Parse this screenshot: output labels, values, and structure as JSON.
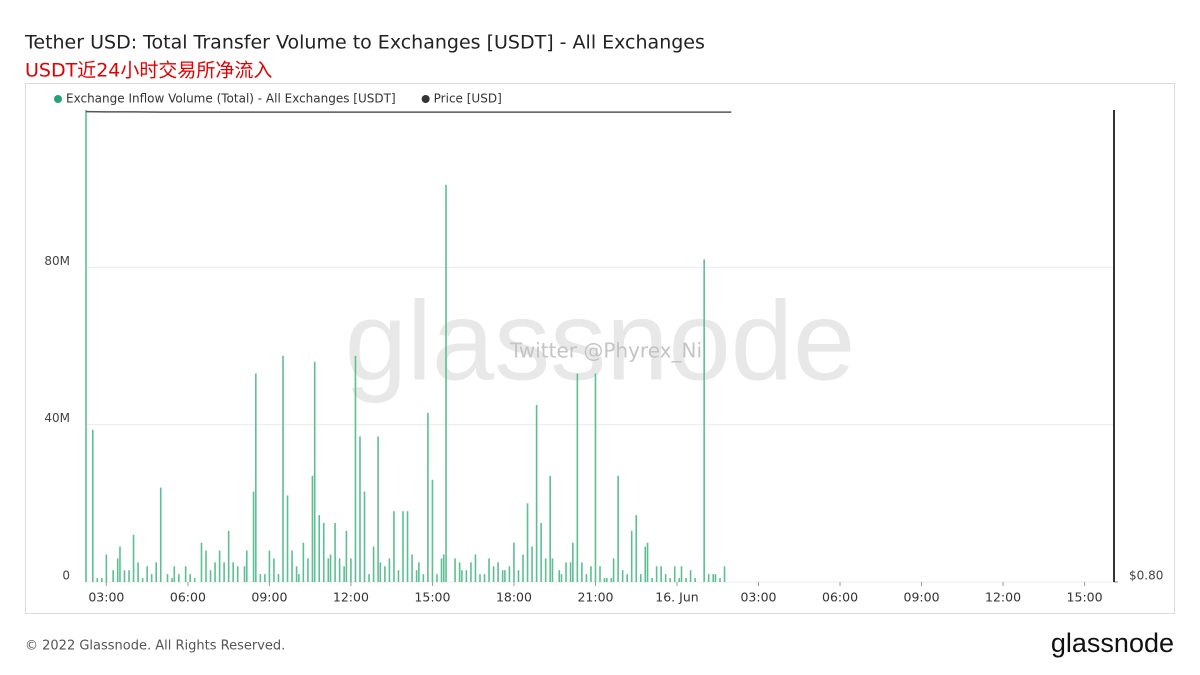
{
  "chart_data": {
    "type": "bar",
    "title": "Tether USD: Total Transfer Volume to Exchanges [USDT] - All Exchanges",
    "subtitle": "USDT近24小时交易所净流入",
    "watermark": "glassnode",
    "annotation": "Twitter @Phyrex_Ni",
    "xlim": [
      "15. Jun 02:15",
      "16. Jun 16:05"
    ],
    "xticks": [
      {
        "value": "15. Jun 03:00",
        "label": "03:00"
      },
      {
        "value": "15. Jun 06:00",
        "label": "06:00"
      },
      {
        "value": "15. Jun 09:00",
        "label": "09:00"
      },
      {
        "value": "15. Jun 12:00",
        "label": "12:00"
      },
      {
        "value": "15. Jun 15:00",
        "label": "15:00"
      },
      {
        "value": "15. Jun 18:00",
        "label": "18:00"
      },
      {
        "value": "15. Jun 21:00",
        "label": "21:00"
      },
      {
        "value": "16. Jun 00:00",
        "label": "16. Jun"
      },
      {
        "value": "16. Jun 03:00",
        "label": "03:00"
      },
      {
        "value": "16. Jun 06:00",
        "label": "06:00"
      },
      {
        "value": "16. Jun 09:00",
        "label": "09:00"
      },
      {
        "value": "16. Jun 12:00",
        "label": "12:00"
      },
      {
        "value": "16. Jun 15:00",
        "label": "15:00"
      }
    ],
    "ylim": [
      0,
      120000000
    ],
    "yticks": [
      0,
      {
        "value": 40000000,
        "label": "40M"
      },
      {
        "value": 80000000,
        "label": "80M"
      }
    ],
    "y2lim": [
      0.8,
      1.0
    ],
    "y2ticks": [
      {
        "value": 0.8,
        "label": "$0.80"
      }
    ],
    "grid": true,
    "series": [
      {
        "name": "Exchange Inflow Volume (Total) - All Exchanges [USDT]",
        "type": "bar",
        "color": "#5cbf93",
        "legend_color": "#26a17b",
        "x": [
          "15. Jun 02:15",
          "15. Jun 02:30",
          "15. Jun 02:40",
          "15. Jun 02:50",
          "15. Jun 03:00",
          "15. Jun 03:15",
          "15. Jun 03:25",
          "15. Jun 03:30",
          "15. Jun 03:40",
          "15. Jun 03:50",
          "15. Jun 04:00",
          "15. Jun 04:10",
          "15. Jun 04:20",
          "15. Jun 04:30",
          "15. Jun 04:40",
          "15. Jun 04:50",
          "15. Jun 05:00",
          "15. Jun 05:15",
          "15. Jun 05:25",
          "15. Jun 05:30",
          "15. Jun 05:40",
          "15. Jun 05:55",
          "15. Jun 06:05",
          "15. Jun 06:15",
          "15. Jun 06:30",
          "15. Jun 06:40",
          "15. Jun 06:50",
          "15. Jun 07:00",
          "15. Jun 07:10",
          "15. Jun 07:20",
          "15. Jun 07:30",
          "15. Jun 07:40",
          "15. Jun 07:50",
          "15. Jun 08:05",
          "15. Jun 08:10",
          "15. Jun 08:25",
          "15. Jun 08:30",
          "15. Jun 08:40",
          "15. Jun 08:50",
          "15. Jun 09:00",
          "15. Jun 09:10",
          "15. Jun 09:20",
          "15. Jun 09:30",
          "15. Jun 09:40",
          "15. Jun 09:50",
          "15. Jun 10:00",
          "15. Jun 10:05",
          "15. Jun 10:15",
          "15. Jun 10:25",
          "15. Jun 10:35",
          "15. Jun 10:40",
          "15. Jun 10:50",
          "15. Jun 11:00",
          "15. Jun 11:10",
          "15. Jun 11:15",
          "15. Jun 11:25",
          "15. Jun 11:35",
          "15. Jun 11:45",
          "15. Jun 11:50",
          "15. Jun 12:00",
          "15. Jun 12:10",
          "15. Jun 12:20",
          "15. Jun 12:30",
          "15. Jun 12:40",
          "15. Jun 12:50",
          "15. Jun 13:00",
          "15. Jun 13:05",
          "15. Jun 13:15",
          "15. Jun 13:25",
          "15. Jun 13:35",
          "15. Jun 13:45",
          "15. Jun 13:55",
          "15. Jun 14:05",
          "15. Jun 14:15",
          "15. Jun 14:25",
          "15. Jun 14:30",
          "15. Jun 14:40",
          "15. Jun 14:50",
          "15. Jun 15:00",
          "15. Jun 15:10",
          "15. Jun 15:20",
          "15. Jun 15:25",
          "15. Jun 15:30",
          "15. Jun 15:50",
          "15. Jun 16:00",
          "15. Jun 16:05",
          "15. Jun 16:15",
          "15. Jun 16:25",
          "15. Jun 16:35",
          "15. Jun 16:45",
          "15. Jun 16:55",
          "15. Jun 17:05",
          "15. Jun 17:15",
          "15. Jun 17:25",
          "15. Jun 17:35",
          "15. Jun 17:40",
          "15. Jun 17:50",
          "15. Jun 18:00",
          "15. Jun 18:10",
          "15. Jun 18:20",
          "15. Jun 18:30",
          "15. Jun 18:40",
          "15. Jun 18:50",
          "15. Jun 19:00",
          "15. Jun 19:10",
          "15. Jun 19:20",
          "15. Jun 19:25",
          "15. Jun 19:40",
          "15. Jun 19:45",
          "15. Jun 19:55",
          "15. Jun 20:05",
          "15. Jun 20:10",
          "15. Jun 20:20",
          "15. Jun 20:30",
          "15. Jun 20:40",
          "15. Jun 20:50",
          "15. Jun 21:00",
          "15. Jun 21:10",
          "15. Jun 21:20",
          "15. Jun 21:25",
          "15. Jun 21:35",
          "15. Jun 21:40",
          "15. Jun 21:50",
          "15. Jun 22:00",
          "15. Jun 22:10",
          "15. Jun 22:20",
          "15. Jun 22:30",
          "15. Jun 22:40",
          "15. Jun 22:50",
          "15. Jun 22:55",
          "15. Jun 23:05",
          "15. Jun 23:15",
          "15. Jun 23:25",
          "15. Jun 23:35",
          "15. Jun 23:45",
          "15. Jun 23:55",
          "16. Jun 00:05",
          "16. Jun 00:10",
          "16. Jun 00:20",
          "16. Jun 00:30",
          "16. Jun 00:40",
          "16. Jun 01:00",
          "16. Jun 01:10",
          "16. Jun 01:20",
          "16. Jun 01:25",
          "16. Jun 01:35",
          "16. Jun 01:45"
        ],
        "values": [
          120000000,
          38700000,
          1000000,
          1000000,
          7000000,
          3000000,
          6000000,
          9000000,
          3000000,
          3000000,
          12000000,
          5000000,
          1000000,
          4000000,
          2000000,
          5000000,
          24000000,
          2000000,
          1000000,
          4000000,
          2000000,
          4000000,
          2000000,
          1000000,
          10000000,
          8000000,
          3000000,
          5000000,
          8000000,
          5000000,
          13000000,
          5000000,
          4000000,
          4000000,
          8000000,
          23000000,
          53000000,
          2000000,
          2000000,
          8000000,
          6000000,
          2000000,
          57500000,
          22000000,
          8000000,
          4000000,
          2000000,
          10000000,
          6000000,
          27000000,
          56000000,
          17000000,
          15000000,
          6000000,
          7000000,
          15000000,
          6000000,
          4000000,
          13000000,
          6000000,
          57500000,
          37000000,
          23000000,
          2000000,
          9000000,
          37000000,
          5000000,
          4000000,
          6000000,
          18000000,
          3000000,
          18000000,
          18000000,
          7000000,
          3000000,
          5000000,
          2000000,
          43000000,
          26000000,
          2000000,
          6000000,
          7000000,
          101000000,
          6000000,
          5000000,
          3000000,
          3000000,
          5000000,
          7000000,
          2000000,
          2000000,
          6000000,
          4000000,
          5000000,
          3000000,
          3000000,
          4000000,
          10000000,
          3000000,
          7000000,
          20000000,
          9000000,
          45000000,
          15000000,
          6000000,
          27000000,
          6000000,
          3000000,
          2000000,
          5000000,
          5000000,
          10000000,
          53000000,
          5000000,
          2000000,
          4000000,
          53000000,
          4000000,
          1000000,
          1000000,
          1000000,
          6000000,
          27000000,
          3000000,
          2000000,
          13000000,
          17000000,
          2000000,
          9000000,
          10000000,
          1000000,
          4000000,
          4000000,
          2000000,
          1000000,
          4000000,
          1000000,
          4000000,
          1000000,
          3000000,
          1000000,
          82000000,
          2000000,
          2000000,
          2000000,
          1000000,
          4000000
        ]
      },
      {
        "name": "Price [USD]",
        "type": "line",
        "axis": "y2",
        "color": "#555555",
        "legend_color": "#333333",
        "x": [
          "15. Jun 02:15",
          "15. Jun 03:00",
          "15. Jun 04:00",
          "15. Jun 05:00",
          "15. Jun 06:00",
          "15. Jun 07:00",
          "15. Jun 08:00",
          "15. Jun 09:00",
          "15. Jun 10:00",
          "15. Jun 11:00",
          "15. Jun 12:00",
          "15. Jun 13:00",
          "15. Jun 14:00",
          "15. Jun 15:00",
          "15. Jun 16:00",
          "15. Jun 17:00",
          "15. Jun 18:00",
          "15. Jun 19:00",
          "15. Jun 20:00",
          "15. Jun 21:00",
          "15. Jun 22:00",
          "15. Jun 23:00",
          "16. Jun 00:00",
          "16. Jun 01:00",
          "16. Jun 02:00"
        ],
        "values": [
          0.9993,
          0.9992,
          0.9992,
          0.9991,
          0.9991,
          0.9991,
          0.9991,
          0.9991,
          0.9991,
          0.9991,
          0.9991,
          0.9991,
          0.9991,
          0.9991,
          0.9991,
          0.9991,
          0.9991,
          0.9991,
          0.9991,
          0.9991,
          0.9991,
          0.9991,
          0.9991,
          0.9991,
          0.9991
        ]
      }
    ]
  },
  "footer": "© 2022 Glassnode. All Rights Reserved.",
  "logo": "glassnode"
}
